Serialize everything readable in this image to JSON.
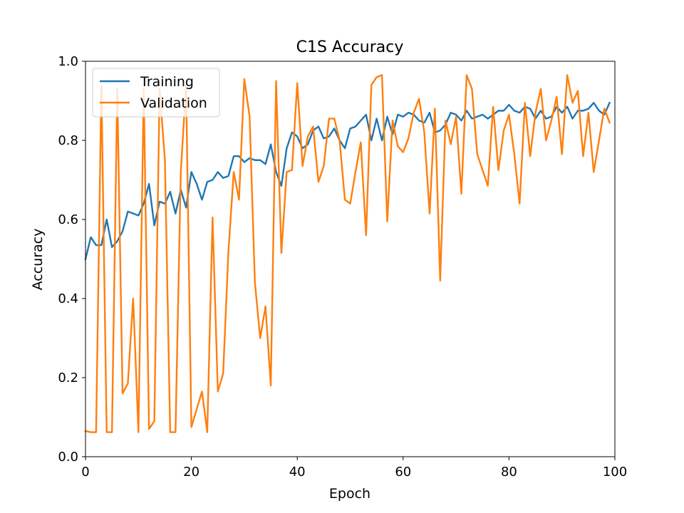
{
  "chart_data": {
    "type": "line",
    "title": "C1S Accuracy",
    "xlabel": "Epoch",
    "ylabel": "Accuracy",
    "xlim": [
      0,
      100
    ],
    "ylim": [
      0.0,
      1.0
    ],
    "xticks": [
      0,
      20,
      40,
      60,
      80,
      100
    ],
    "xtick_labels": [
      "0",
      "20",
      "40",
      "60",
      "80",
      "100"
    ],
    "yticks": [
      0.0,
      0.2,
      0.4,
      0.6,
      0.8,
      1.0
    ],
    "ytick_labels": [
      "0.0",
      "0.2",
      "0.4",
      "0.6",
      "0.8",
      "1.0"
    ],
    "grid": false,
    "legend_position": "top-left",
    "x": [
      0,
      1,
      2,
      3,
      4,
      5,
      6,
      7,
      8,
      9,
      10,
      11,
      12,
      13,
      14,
      15,
      16,
      17,
      18,
      19,
      20,
      21,
      22,
      23,
      24,
      25,
      26,
      27,
      28,
      29,
      30,
      31,
      32,
      33,
      34,
      35,
      36,
      37,
      38,
      39,
      40,
      41,
      42,
      43,
      44,
      45,
      46,
      47,
      48,
      49,
      50,
      51,
      52,
      53,
      54,
      55,
      56,
      57,
      58,
      59,
      60,
      61,
      62,
      63,
      64,
      65,
      66,
      67,
      68,
      69,
      70,
      71,
      72,
      73,
      74,
      75,
      76,
      77,
      78,
      79,
      80,
      81,
      82,
      83,
      84,
      85,
      86,
      87,
      88,
      89,
      90,
      91,
      92,
      93,
      94,
      95,
      96,
      97,
      98,
      99
    ],
    "series": [
      {
        "name": "Training",
        "color": "#1f77b4",
        "values": [
          0.5,
          0.555,
          0.535,
          0.535,
          0.6,
          0.53,
          0.545,
          0.57,
          0.62,
          0.615,
          0.61,
          0.64,
          0.69,
          0.585,
          0.645,
          0.64,
          0.67,
          0.615,
          0.675,
          0.63,
          0.72,
          0.69,
          0.65,
          0.695,
          0.7,
          0.72,
          0.705,
          0.71,
          0.76,
          0.76,
          0.745,
          0.755,
          0.75,
          0.75,
          0.74,
          0.79,
          0.72,
          0.685,
          0.78,
          0.82,
          0.81,
          0.78,
          0.79,
          0.825,
          0.835,
          0.805,
          0.81,
          0.83,
          0.8,
          0.78,
          0.83,
          0.835,
          0.85,
          0.865,
          0.8,
          0.855,
          0.8,
          0.86,
          0.815,
          0.865,
          0.86,
          0.87,
          0.865,
          0.85,
          0.845,
          0.87,
          0.82,
          0.825,
          0.84,
          0.87,
          0.865,
          0.85,
          0.875,
          0.855,
          0.86,
          0.865,
          0.855,
          0.865,
          0.875,
          0.875,
          0.89,
          0.875,
          0.87,
          0.885,
          0.88,
          0.855,
          0.875,
          0.855,
          0.86,
          0.885,
          0.87,
          0.885,
          0.855,
          0.875,
          0.875,
          0.88,
          0.895,
          0.875,
          0.865,
          0.895
        ]
      },
      {
        "name": "Validation",
        "color": "#ff7f0e",
        "values": [
          0.065,
          0.062,
          0.062,
          0.94,
          0.062,
          0.062,
          0.93,
          0.16,
          0.185,
          0.4,
          0.062,
          0.93,
          0.07,
          0.09,
          0.93,
          0.75,
          0.062,
          0.062,
          0.72,
          0.94,
          0.075,
          0.12,
          0.165,
          0.062,
          0.605,
          0.165,
          0.21,
          0.52,
          0.72,
          0.65,
          0.955,
          0.86,
          0.44,
          0.3,
          0.38,
          0.18,
          0.95,
          0.515,
          0.72,
          0.725,
          0.945,
          0.735,
          0.81,
          0.835,
          0.695,
          0.735,
          0.855,
          0.855,
          0.8,
          0.65,
          0.64,
          0.72,
          0.795,
          0.56,
          0.94,
          0.96,
          0.965,
          0.595,
          0.85,
          0.785,
          0.77,
          0.805,
          0.87,
          0.905,
          0.82,
          0.615,
          0.88,
          0.445,
          0.85,
          0.79,
          0.86,
          0.665,
          0.965,
          0.93,
          0.765,
          0.725,
          0.685,
          0.885,
          0.725,
          0.825,
          0.865,
          0.765,
          0.64,
          0.895,
          0.76,
          0.87,
          0.93,
          0.8,
          0.85,
          0.91,
          0.765,
          0.965,
          0.895,
          0.925,
          0.76,
          0.87,
          0.72,
          0.8,
          0.88,
          0.845
        ]
      }
    ]
  }
}
